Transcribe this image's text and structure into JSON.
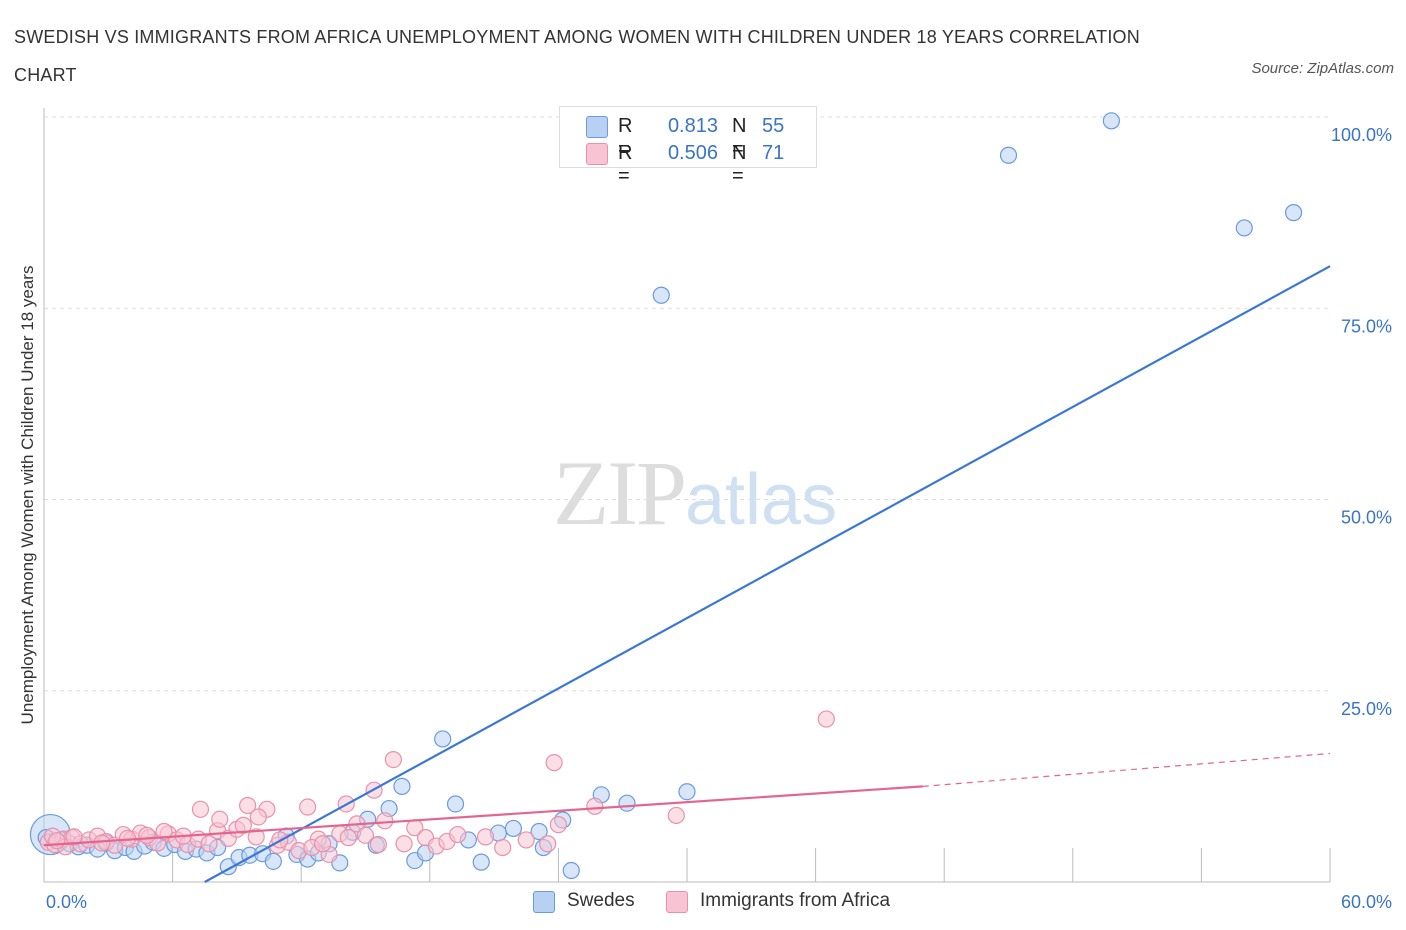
{
  "title": "SWEDISH VS IMMIGRANTS FROM AFRICA UNEMPLOYMENT AMONG WOMEN WITH CHILDREN UNDER 18 YEARS CORRELATION CHART",
  "source": "Source: ZipAtlas.com",
  "watermark": {
    "zip": "ZIP",
    "atlas": "atlas"
  },
  "legend_top": {
    "rows": [
      {
        "r_key": "R =",
        "r_value": "0.813",
        "n_key": "N =",
        "n_value": "55"
      },
      {
        "r_key": "R =",
        "r_value": "0.506",
        "n_key": "N =",
        "n_value": "71"
      }
    ]
  },
  "legend_bottom": [
    "Swedes",
    "Immigrants from Africa"
  ],
  "colors": {
    "swedes_fill": "#b8d1f3",
    "swedes_stroke": "#6a9be0",
    "swedes_line": "#3a78d4",
    "africa_fill": "#f8c4d3",
    "africa_stroke": "#e991ab",
    "africa_line": "#e4668f",
    "tick_text": "#3a74c9",
    "grid": "#dddddd"
  },
  "chart_data": {
    "type": "scatter",
    "title": "SWEDISH VS IMMIGRANTS FROM AFRICA UNEMPLOYMENT AMONG WOMEN WITH CHILDREN UNDER 18 YEARS CORRELATION CHART",
    "xlabel": "",
    "ylabel": "Unemployment Among Women with Children Under 18 years",
    "xlim": [
      0,
      60
    ],
    "ylim": [
      0,
      100
    ],
    "x_tick_labels": [
      "0.0%",
      "60.0%"
    ],
    "y_tick_labels": [
      "25.0%",
      "50.0%",
      "75.0%",
      "100.0%"
    ],
    "y_ticks": [
      25,
      50,
      75,
      100
    ],
    "grid": true,
    "legend_position": "top-center",
    "series": [
      {
        "name": "Swedes",
        "R": 0.813,
        "N": 55,
        "trend": {
          "x": [
            7.5,
            60
          ],
          "y": [
            0,
            80.5
          ],
          "dashed_beyond": null
        },
        "points": [
          [
            0.3,
            6.2
          ],
          [
            0.8,
            5.5
          ],
          [
            1.2,
            5.0
          ],
          [
            1.6,
            4.6
          ],
          [
            2.0,
            4.8
          ],
          [
            2.5,
            4.3
          ],
          [
            2.9,
            5.1
          ],
          [
            3.3,
            4.1
          ],
          [
            3.8,
            4.5
          ],
          [
            4.2,
            4.0
          ],
          [
            4.7,
            4.7
          ],
          [
            5.1,
            5.2
          ],
          [
            5.6,
            4.4
          ],
          [
            6.1,
            4.9
          ],
          [
            6.6,
            4.0
          ],
          [
            7.1,
            4.3
          ],
          [
            7.6,
            3.8
          ],
          [
            8.1,
            4.5
          ],
          [
            8.6,
            2.0
          ],
          [
            9.1,
            3.2
          ],
          [
            9.6,
            3.5
          ],
          [
            10.2,
            3.7
          ],
          [
            10.7,
            2.7
          ],
          [
            11.3,
            6.0
          ],
          [
            11.8,
            3.6
          ],
          [
            12.3,
            3.0
          ],
          [
            12.8,
            3.8
          ],
          [
            13.3,
            5.0
          ],
          [
            13.8,
            2.5
          ],
          [
            14.4,
            6.5
          ],
          [
            15.1,
            8.2
          ],
          [
            15.5,
            4.8
          ],
          [
            16.1,
            9.6
          ],
          [
            16.7,
            12.5
          ],
          [
            17.3,
            2.8
          ],
          [
            17.8,
            3.8
          ],
          [
            18.6,
            18.7
          ],
          [
            19.2,
            10.2
          ],
          [
            19.8,
            5.5
          ],
          [
            20.4,
            2.6
          ],
          [
            21.2,
            6.4
          ],
          [
            21.9,
            7.0
          ],
          [
            23.1,
            6.6
          ],
          [
            23.3,
            4.5
          ],
          [
            24.2,
            8.1
          ],
          [
            24.6,
            1.5
          ],
          [
            26.0,
            11.4
          ],
          [
            27.2,
            10.3
          ],
          [
            28.8,
            76.7
          ],
          [
            30.0,
            11.8
          ],
          [
            45.0,
            95.0
          ],
          [
            49.8,
            99.5
          ],
          [
            56.0,
            85.5
          ],
          [
            58.3,
            87.5
          ],
          [
            0.1,
            5.8
          ]
        ]
      },
      {
        "name": "Immigrants from Africa",
        "R": 0.506,
        "N": 71,
        "trend": {
          "x": [
            0,
            41
          ],
          "y": [
            4.8,
            12.5
          ],
          "dashed_to": {
            "x": 60,
            "y": 16.8
          }
        },
        "points": [
          [
            0.2,
            5.2
          ],
          [
            0.5,
            4.9
          ],
          [
            0.9,
            5.6
          ],
          [
            1.3,
            5.8
          ],
          [
            1.7,
            5.0
          ],
          [
            2.1,
            5.5
          ],
          [
            2.5,
            6.0
          ],
          [
            2.9,
            5.3
          ],
          [
            3.3,
            4.8
          ],
          [
            3.7,
            6.2
          ],
          [
            4.1,
            5.6
          ],
          [
            4.5,
            6.4
          ],
          [
            4.9,
            5.8
          ],
          [
            5.3,
            5.1
          ],
          [
            5.8,
            6.3
          ],
          [
            6.2,
            5.5
          ],
          [
            6.7,
            4.9
          ],
          [
            7.2,
            5.6
          ],
          [
            7.7,
            5.0
          ],
          [
            8.1,
            6.7
          ],
          [
            8.6,
            5.7
          ],
          [
            9.0,
            6.9
          ],
          [
            9.5,
            10.0
          ],
          [
            9.9,
            5.9
          ],
          [
            10.4,
            9.5
          ],
          [
            10.9,
            4.8
          ],
          [
            11.4,
            5.2
          ],
          [
            11.9,
            4.1
          ],
          [
            12.3,
            9.8
          ],
          [
            12.8,
            5.6
          ],
          [
            13.3,
            3.6
          ],
          [
            13.8,
            6.3
          ],
          [
            14.1,
            10.2
          ],
          [
            14.6,
            7.6
          ],
          [
            15.0,
            6.1
          ],
          [
            15.4,
            12.0
          ],
          [
            15.9,
            8.0
          ],
          [
            16.3,
            16.0
          ],
          [
            16.8,
            5.0
          ],
          [
            17.3,
            7.1
          ],
          [
            17.8,
            5.8
          ],
          [
            18.3,
            4.7
          ],
          [
            18.8,
            5.3
          ],
          [
            19.3,
            6.2
          ],
          [
            7.3,
            9.5
          ],
          [
            8.2,
            8.2
          ],
          [
            10.0,
            8.5
          ],
          [
            11.0,
            5.5
          ],
          [
            12.5,
            4.5
          ],
          [
            13.0,
            5.0
          ],
          [
            14.2,
            5.8
          ],
          [
            6.5,
            6.0
          ],
          [
            2.7,
            5.1
          ],
          [
            3.9,
            5.7
          ],
          [
            1.0,
            4.6
          ],
          [
            0.4,
            6.0
          ],
          [
            22.5,
            5.5
          ],
          [
            23.5,
            5.0
          ],
          [
            24.0,
            7.5
          ],
          [
            23.8,
            15.6
          ],
          [
            25.7,
            9.9
          ],
          [
            29.5,
            8.7
          ],
          [
            36.5,
            21.3
          ],
          [
            0.6,
            5.4
          ],
          [
            1.4,
            5.9
          ],
          [
            4.8,
            6.1
          ],
          [
            5.6,
            6.6
          ],
          [
            9.3,
            7.4
          ],
          [
            15.6,
            4.9
          ],
          [
            20.6,
            5.9
          ],
          [
            21.4,
            4.5
          ]
        ]
      }
    ]
  }
}
